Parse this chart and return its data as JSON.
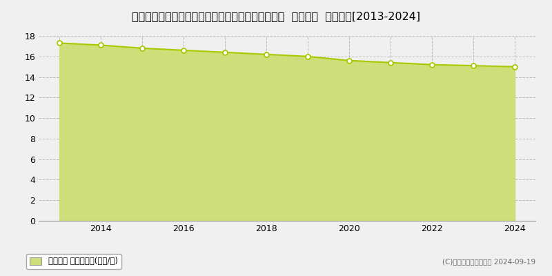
{
  "title": "栃木県下都賀郡野木町大字丸林字富士見３８３番８  基準地価  地価推移[2013-2024]",
  "years": [
    2013,
    2014,
    2015,
    2016,
    2017,
    2018,
    2019,
    2020,
    2021,
    2022,
    2023,
    2024
  ],
  "values": [
    17.3,
    17.1,
    16.8,
    16.6,
    16.4,
    16.2,
    16.0,
    15.6,
    15.4,
    15.2,
    15.1,
    15.0
  ],
  "ylim": [
    0,
    18
  ],
  "yticks": [
    0,
    2,
    4,
    6,
    8,
    10,
    12,
    14,
    16,
    18
  ],
  "xticks": [
    2013,
    2014,
    2015,
    2016,
    2017,
    2018,
    2019,
    2020,
    2021,
    2022,
    2023,
    2024
  ],
  "xticklabels": [
    "",
    "2014",
    "",
    "2016",
    "",
    "2018",
    "",
    "2020",
    "",
    "2022",
    "",
    "2024"
  ],
  "line_color": "#a8c800",
  "fill_color": "#cede78",
  "fill_alpha": 1.0,
  "marker_color": "white",
  "marker_edge_color": "#a8c800",
  "background_color": "#f0f0f0",
  "plot_background": "#f0f0f0",
  "grid_color": "#bbbbbb",
  "title_fontsize": 11.5,
  "tick_fontsize": 9,
  "legend_label": "基準地価 平均坪単価(万円/坪)",
  "copyright_text": "(C)土地価格ドットコム 2024-09-19"
}
